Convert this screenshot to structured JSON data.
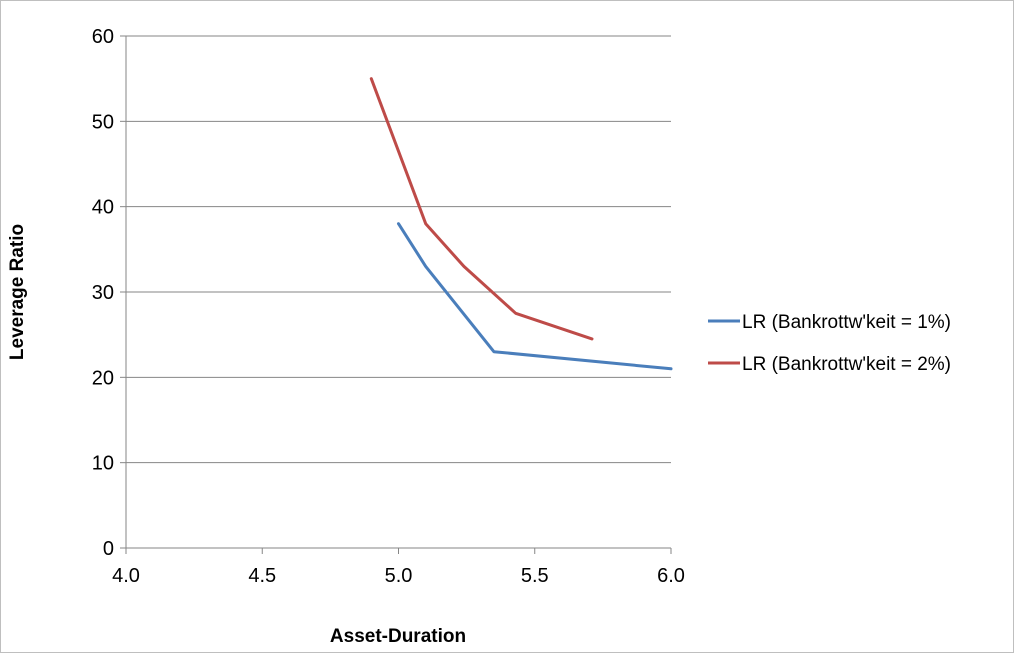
{
  "chart_data": {
    "type": "line",
    "title": "",
    "xlabel": "Asset-Duration",
    "ylabel": "Leverage Ratio",
    "xlim": [
      4.0,
      6.0
    ],
    "ylim": [
      0,
      60
    ],
    "x_ticks": [
      "4.0",
      "4.5",
      "5.0",
      "5.5",
      "6.0"
    ],
    "y_ticks": [
      "0",
      "10",
      "20",
      "30",
      "40",
      "50",
      "60"
    ],
    "grid": "horizontal major gridlines",
    "legend_position": "right",
    "series": [
      {
        "name": "LR (Bankrottw'keit = 1%)",
        "color": "#4a7ebb",
        "x": [
          5.0,
          5.1,
          5.35,
          6.0
        ],
        "y": [
          38,
          33,
          23,
          21
        ]
      },
      {
        "name": "LR (Bankrottw'keit = 2%)",
        "color": "#be4b48",
        "x": [
          4.9,
          5.1,
          5.24,
          5.43,
          5.71
        ],
        "y": [
          55,
          38,
          33,
          27.5,
          24.5
        ]
      }
    ]
  }
}
